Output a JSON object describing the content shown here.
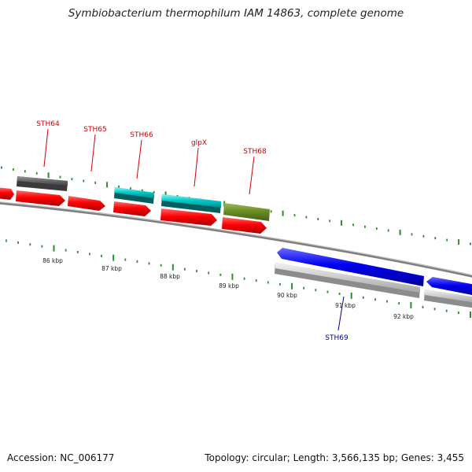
{
  "title": "Symbiobacterium thermophilum IAM 14863, complete genome",
  "footer": {
    "accession": "Accession: NC_006177",
    "summary": "Topology: circular; Length: 3,566,135 bp; Genes: 3,455"
  },
  "colors": {
    "backbone": "#888888",
    "tick": "#2e8b2e",
    "label_red": "#cc0000",
    "label_blue": "#000099"
  },
  "ticks": [
    {
      "label": "86 kbp"
    },
    {
      "label": "87 kbp"
    },
    {
      "label": "88 kbp"
    },
    {
      "label": "89 kbp"
    },
    {
      "label": "90 kbp"
    },
    {
      "label": "91 kbp"
    },
    {
      "label": "92 kbp"
    }
  ],
  "gene_labels": [
    {
      "text": "STH64",
      "color": "#cc0000"
    },
    {
      "text": "STH65",
      "color": "#cc0000"
    },
    {
      "text": "STH66",
      "color": "#cc0000"
    },
    {
      "text": "glpX",
      "color": "#cc0000"
    },
    {
      "text": "STH68",
      "color": "#cc0000"
    },
    {
      "text": "STH69",
      "color": "#000099"
    }
  ]
}
